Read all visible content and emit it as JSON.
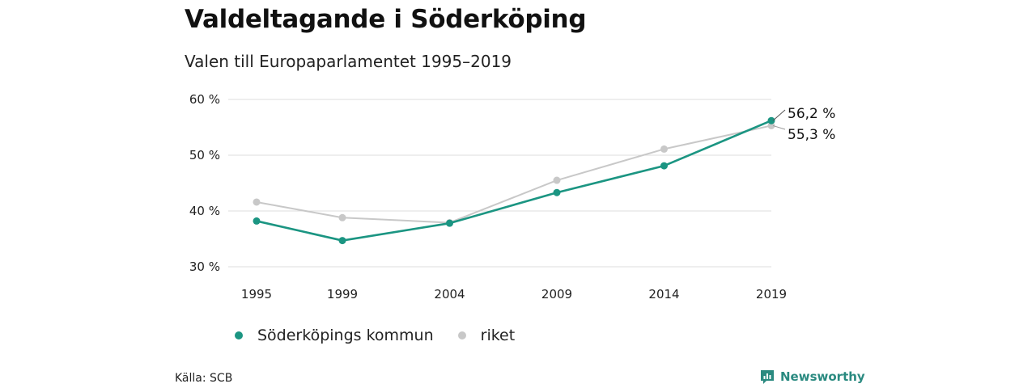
{
  "colors": {
    "accent": "#1b9582",
    "secondary": "#c8c8c8",
    "grid": "#dddddd",
    "brand": "#2a8a80"
  },
  "chart_data": {
    "type": "line",
    "title": "Valdeltagande i Söderköping",
    "subtitle": "Valen till Europaparlamentet 1995–2019",
    "x": [
      1995,
      1999,
      2004,
      2009,
      2014,
      2019
    ],
    "x_tick_labels": [
      "1995",
      "1999",
      "2004",
      "2009",
      "2014",
      "2019"
    ],
    "y_ticks": [
      30,
      40,
      50,
      60
    ],
    "y_tick_labels": [
      "30 %",
      "40 %",
      "50 %",
      "60 %"
    ],
    "ylim": [
      30,
      60
    ],
    "grid": true,
    "legend_position": "bottom-left",
    "series": [
      {
        "name": "Söderköpings kommun",
        "values": [
          38.2,
          34.7,
          37.8,
          43.3,
          48.1,
          56.2
        ],
        "color": "#1b9582",
        "end_label": "56,2 %"
      },
      {
        "name": "riket",
        "values": [
          41.6,
          38.8,
          37.9,
          45.5,
          51.1,
          55.3
        ],
        "color": "#c8c8c8",
        "end_label": "55,3 %"
      }
    ]
  },
  "footer": {
    "source": "Källa: SCB",
    "brand": "Newsworthy",
    "brand_icon": "newsworthy-logo-icon"
  }
}
